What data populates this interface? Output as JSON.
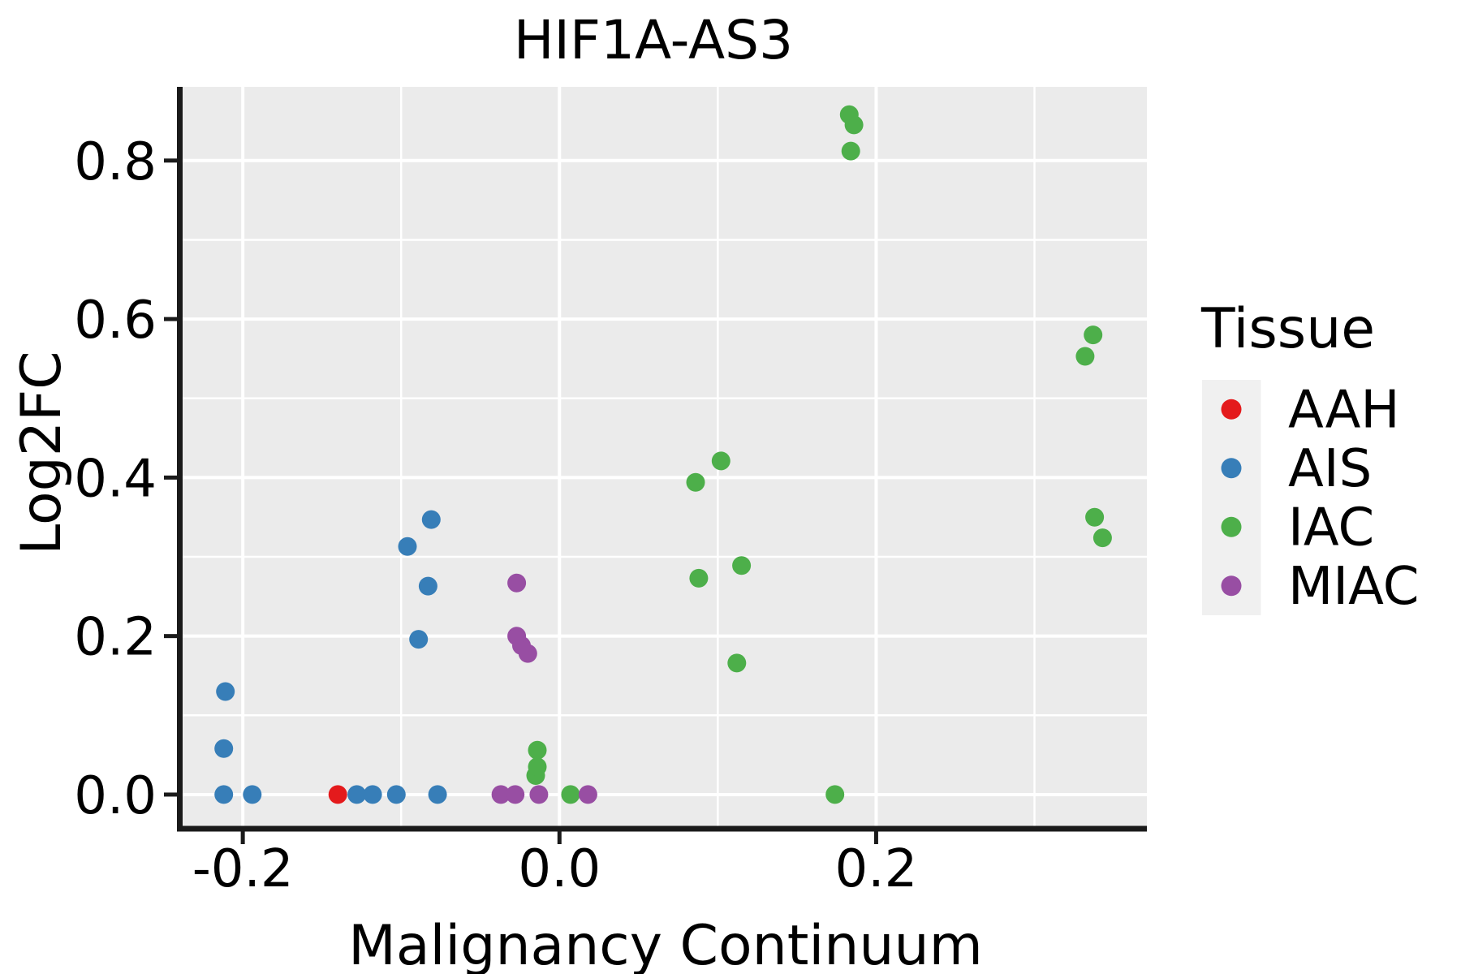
{
  "title": "HIF1A-AS3",
  "legend": {
    "title": "Tissue",
    "items": [
      {
        "label": "AAH",
        "color": "#E41A1C"
      },
      {
        "label": "AIS",
        "color": "#377EB8"
      },
      {
        "label": "IAC",
        "color": "#4DAF4A"
      },
      {
        "label": "MIAC",
        "color": "#984EA3"
      }
    ]
  },
  "chart_data": {
    "type": "scatter",
    "title": "HIF1A-AS3",
    "xlabel": "Malignancy Continuum",
    "ylabel": "Log2FC",
    "xlim": [
      -0.238,
      0.371
    ],
    "ylim": [
      -0.04,
      0.893
    ],
    "x_ticks": {
      "values": [
        -0.2,
        0.0,
        0.2
      ],
      "labels": [
        "-0.2",
        "0.0",
        "0.2"
      ]
    },
    "y_ticks": {
      "values": [
        0.0,
        0.2,
        0.4,
        0.6,
        0.8
      ],
      "labels": [
        "0.0",
        "0.2",
        "0.4",
        "0.6",
        "0.8"
      ]
    },
    "x_minor_gridlines": [
      -0.1,
      0.1,
      0.3
    ],
    "y_minor_gridlines": [
      0.1,
      0.3,
      0.5,
      0.7
    ],
    "grid": true,
    "legend_position": "right",
    "panel_background": "#EBEBEB",
    "gridline_color": "#FFFFFF",
    "point_radius": 11.5,
    "series": [
      {
        "name": "AAH",
        "color": "#E41A1C",
        "points": [
          [
            -0.14,
            0.0
          ]
        ]
      },
      {
        "name": "AIS",
        "color": "#377EB8",
        "points": [
          [
            -0.212,
            0.0
          ],
          [
            -0.194,
            0.0
          ],
          [
            -0.128,
            0.0
          ],
          [
            -0.118,
            0.0
          ],
          [
            -0.103,
            0.0
          ],
          [
            -0.077,
            0.0
          ],
          [
            -0.212,
            0.058
          ],
          [
            -0.211,
            0.13
          ],
          [
            -0.089,
            0.196
          ],
          [
            -0.083,
            0.263
          ],
          [
            -0.096,
            0.313
          ],
          [
            -0.081,
            0.347
          ]
        ]
      },
      {
        "name": "IAC",
        "color": "#4DAF4A",
        "points": [
          [
            0.007,
            0.0
          ],
          [
            0.174,
            0.0
          ],
          [
            -0.015,
            0.024
          ],
          [
            -0.014,
            0.035
          ],
          [
            -0.014,
            0.056
          ],
          [
            0.112,
            0.166
          ],
          [
            0.088,
            0.273
          ],
          [
            0.115,
            0.289
          ],
          [
            0.086,
            0.394
          ],
          [
            0.102,
            0.421
          ],
          [
            0.184,
            0.812
          ],
          [
            0.186,
            0.845
          ],
          [
            0.183,
            0.858
          ],
          [
            0.332,
            0.553
          ],
          [
            0.337,
            0.58
          ],
          [
            0.343,
            0.324
          ],
          [
            0.338,
            0.35
          ]
        ]
      },
      {
        "name": "MIAC",
        "color": "#984EA3",
        "points": [
          [
            -0.037,
            0.0
          ],
          [
            -0.028,
            0.0
          ],
          [
            -0.013,
            0.0
          ],
          [
            0.018,
            0.0
          ],
          [
            -0.02,
            0.178
          ],
          [
            -0.024,
            0.188
          ],
          [
            -0.027,
            0.2
          ],
          [
            -0.027,
            0.267
          ]
        ]
      }
    ]
  }
}
